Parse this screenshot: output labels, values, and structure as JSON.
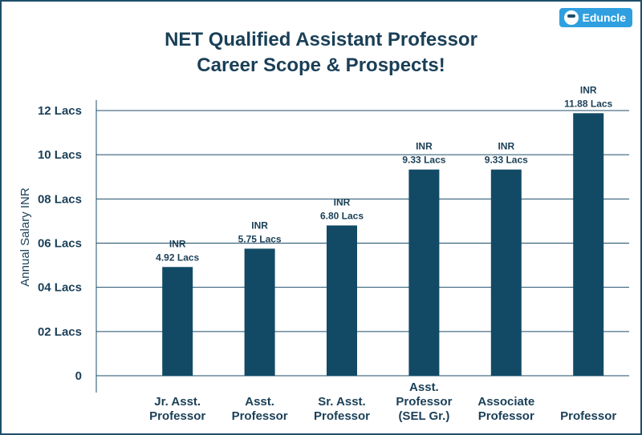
{
  "brand": {
    "name": "Eduncle"
  },
  "chart_data": {
    "type": "bar",
    "title": [
      "NET Qualified Assistant Professor",
      "Career Scope & Prospects!"
    ],
    "ylabel": "Annual Salary INR",
    "xlabel": "",
    "ylim": [
      0,
      12
    ],
    "ytick_values": [
      0,
      2,
      4,
      6,
      8,
      10,
      12
    ],
    "ytick_labels": [
      "0",
      "02 Lacs",
      "04 Lacs",
      "06 Lacs",
      "08 Lacs",
      "10 Lacs",
      "12 Lacs"
    ],
    "categories": [
      [
        "Jr. Asst.",
        "Professor"
      ],
      [
        "Asst.",
        "Professor"
      ],
      [
        "Sr. Asst.",
        "Professor"
      ],
      [
        "Asst.",
        "Professor",
        "(SEL Gr.)"
      ],
      [
        "Associate",
        "Professor"
      ],
      [
        "Professor"
      ]
    ],
    "values": [
      4.92,
      5.75,
      6.8,
      9.33,
      9.33,
      11.88
    ],
    "data_labels": [
      [
        "INR",
        "4.92 Lacs"
      ],
      [
        "INR",
        "5.75 Lacs"
      ],
      [
        "INR",
        "6.80 Lacs"
      ],
      [
        "INR",
        "9.33 Lacs"
      ],
      [
        "INR",
        "9.33 Lacs"
      ],
      [
        "INR",
        "11.88 Lacs"
      ]
    ],
    "bar_color": "#124a66",
    "grid": true
  }
}
